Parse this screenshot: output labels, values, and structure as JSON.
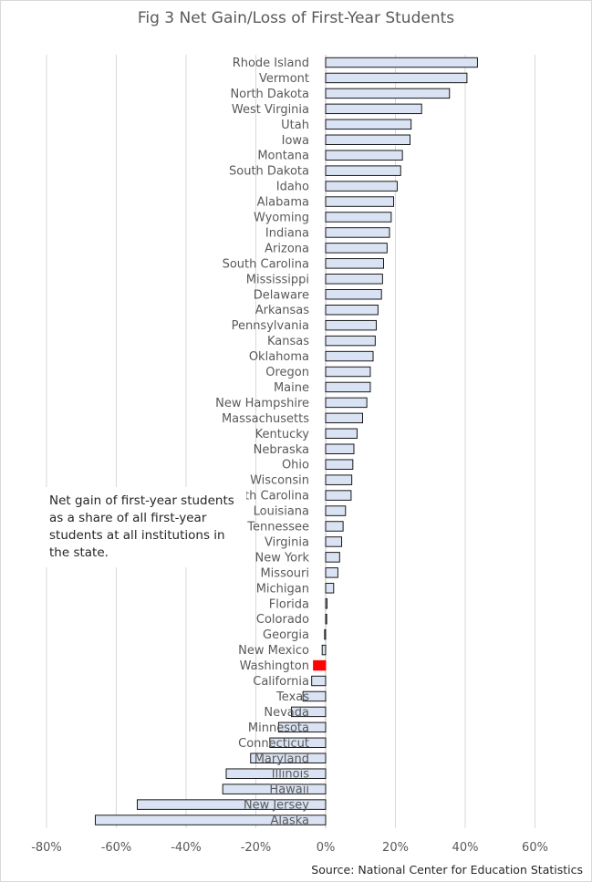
{
  "chart_data": {
    "type": "bar",
    "orientation": "horizontal",
    "title": "Fig 3 Net Gain/Loss of First-Year Students",
    "annotation": "Net gain of first-year students as a share of all first-year students at all institutions in the state.",
    "source": "Source: National Center for Education Statistics",
    "xlim": [
      -80,
      60
    ],
    "x_ticks": [
      -80,
      -60,
      -40,
      -20,
      0,
      20,
      40,
      60
    ],
    "x_tick_labels": [
      "-80%",
      "-60%",
      "-40%",
      "-20%",
      "0%",
      "20%",
      "40%",
      "60%"
    ],
    "grid": "vertical",
    "bar_color": "#dae3f3",
    "bar_edge_color": "#000000",
    "highlight_color": "#ff0000",
    "highlight_category": "Washington",
    "categories": [
      "Rhode Island",
      "Vermont",
      "North Dakota",
      "West Virginia",
      "Utah",
      "Iowa",
      "Montana",
      "South Dakota",
      "Idaho",
      "Alabama",
      "Wyoming",
      "Indiana",
      "Arizona",
      "South Carolina",
      "Mississippi",
      "Delaware",
      "Arkansas",
      "Pennsylvania",
      "Kansas",
      "Oklahoma",
      "Oregon",
      "Maine",
      "New Hampshire",
      "Massachusetts",
      "Kentucky",
      "Nebraska",
      "Ohio",
      "Wisconsin",
      "North Carolina",
      "Louisiana",
      "Tennessee",
      "Virginia",
      "New York",
      "Missouri",
      "Michigan",
      "Florida",
      "Colorado",
      "Georgia",
      "New Mexico",
      "Washington",
      "California",
      "Texas",
      "Nevada",
      "Minnesota",
      "Connecticut",
      "Maryland",
      "Illinois",
      "Hawaii",
      "New Jersey",
      "Alaska"
    ],
    "values": [
      43.5,
      40.5,
      35.5,
      27.5,
      24.5,
      24.2,
      22,
      21.5,
      20.5,
      19.5,
      18.8,
      18.3,
      17.6,
      16.6,
      16.3,
      16,
      15,
      14.5,
      14.2,
      13.6,
      12.8,
      12.8,
      11.8,
      10.6,
      9,
      8.1,
      7.8,
      7.5,
      7.3,
      5.7,
      5,
      4.6,
      4,
      3.5,
      2.3,
      0.4,
      0.3,
      -0.3,
      -1,
      -3.5,
      -4,
      -6.5,
      -9.8,
      -13.5,
      -16,
      -21.5,
      -28.5,
      -29.5,
      -54,
      -66
    ]
  }
}
